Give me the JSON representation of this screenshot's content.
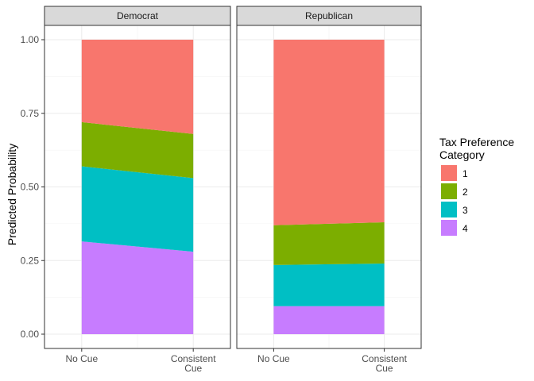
{
  "chart_data": {
    "type": "area",
    "stacked": true,
    "facets": [
      "Democrat",
      "Republican"
    ],
    "x": [
      "No Cue",
      "Consistent\nCue"
    ],
    "ylabel": "Predicted Probability",
    "xlabel": "",
    "ylim": [
      0,
      1
    ],
    "yticks": [
      "0.00",
      "0.25",
      "0.50",
      "0.75",
      "1.00"
    ],
    "legend": {
      "title": "Tax Preference\nCategory",
      "position": "right",
      "entries": [
        "1",
        "2",
        "3",
        "4"
      ]
    },
    "colors": {
      "1": "#F8766D",
      "2": "#7CAE00",
      "3": "#00BFC4",
      "4": "#C77CFF"
    },
    "grid": true,
    "series": [
      {
        "name": "1",
        "Democrat": [
          0.28,
          0.32
        ],
        "Republican": [
          0.63,
          0.62
        ]
      },
      {
        "name": "2",
        "Democrat": [
          0.15,
          0.15
        ],
        "Republican": [
          0.135,
          0.14
        ]
      },
      {
        "name": "3",
        "Democrat": [
          0.255,
          0.25
        ],
        "Republican": [
          0.14,
          0.145
        ]
      },
      {
        "name": "4",
        "Democrat": [
          0.315,
          0.28
        ],
        "Republican": [
          0.095,
          0.095
        ]
      }
    ]
  }
}
